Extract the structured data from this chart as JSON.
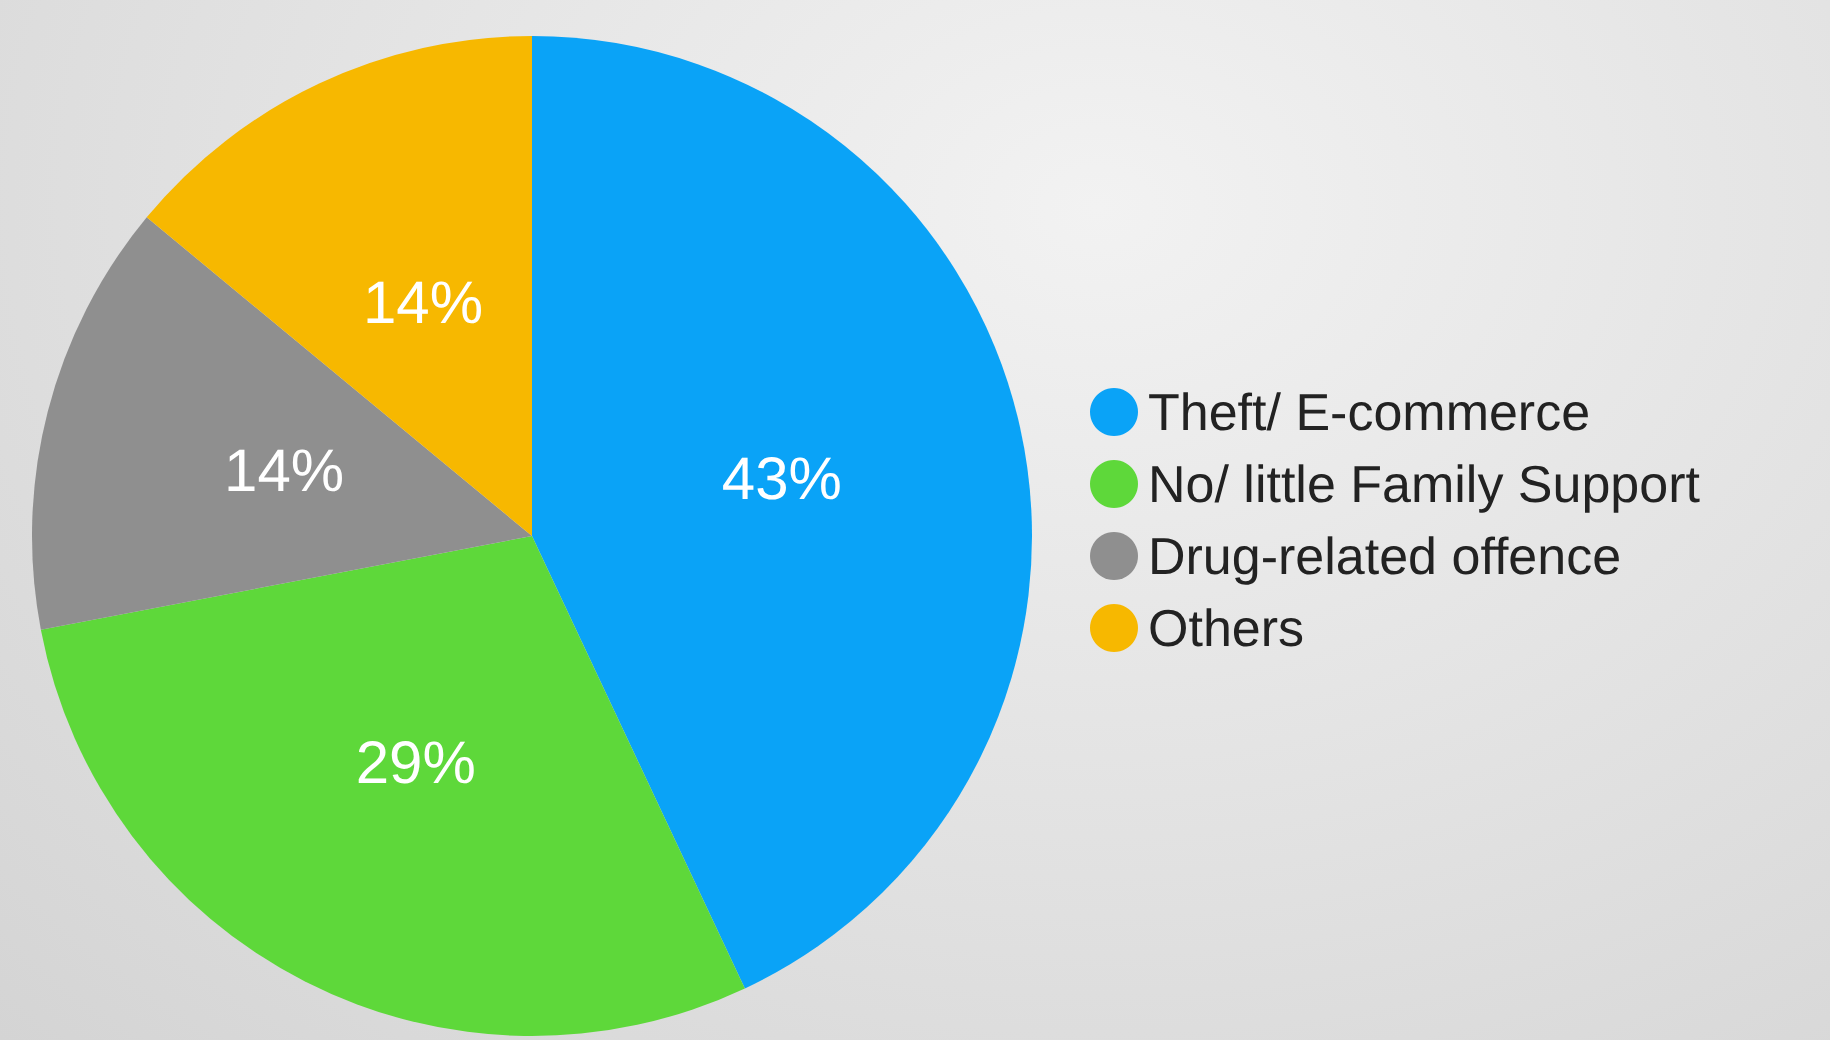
{
  "chart_data": {
    "type": "pie",
    "categories": [
      "Theft/ E-commerce",
      "No/ little Family Support",
      "Drug-related offence",
      "Others"
    ],
    "values": [
      43,
      29,
      14,
      14
    ],
    "colors": [
      "#0aa3f7",
      "#5ed83a",
      "#8f8f8f",
      "#f7b800"
    ],
    "value_labels": [
      "43%",
      "29%",
      "14%",
      "14%"
    ],
    "legend": "right"
  }
}
